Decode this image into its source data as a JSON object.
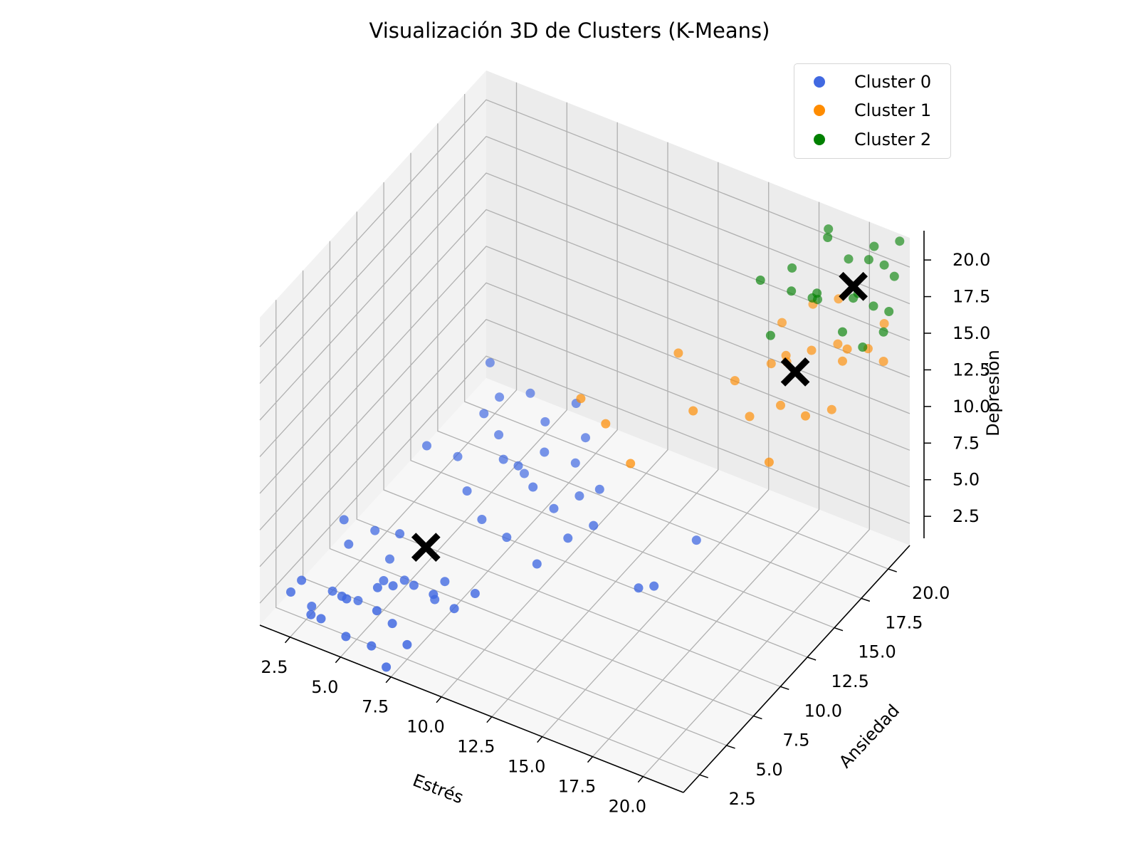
{
  "chart_data": {
    "type": "scatter",
    "title": "Visualización 3D de Clusters (K-Means)",
    "xlabel": "Estrés",
    "ylabel": "Ansiedad",
    "zlabel": "Depresión",
    "xlim": [
      1,
      22
    ],
    "ylim": [
      1,
      22
    ],
    "zlim": [
      1,
      22
    ],
    "x_ticks": [
      "2.5",
      "5.0",
      "7.5",
      "10.0",
      "12.5",
      "15.0",
      "17.5",
      "20.0"
    ],
    "y_ticks": [
      "2.5",
      "5.0",
      "7.5",
      "10.0",
      "12.5",
      "15.0",
      "17.5",
      "20.0"
    ],
    "z_ticks": [
      "2.5",
      "5.0",
      "7.5",
      "10.0",
      "12.5",
      "15.0",
      "17.5",
      "20.0"
    ],
    "grid": true,
    "legend_position": "top-right",
    "series": [
      {
        "name": "Cluster 0",
        "color": "#4169e1",
        "points": [
          [
            2.0,
            2.0,
            3.0
          ],
          [
            2.0,
            3.0,
            3.0
          ],
          [
            3.0,
            2.0,
            2.0
          ],
          [
            2.5,
            3.0,
            1.5
          ],
          [
            3.5,
            2.0,
            2.0
          ],
          [
            4.0,
            3.0,
            3.0
          ],
          [
            3.0,
            4.0,
            2.0
          ],
          [
            4.5,
            2.5,
            3.5
          ],
          [
            5.0,
            1.5,
            2.0
          ],
          [
            4.0,
            4.5,
            1.5
          ],
          [
            5.5,
            3.5,
            4.0
          ],
          [
            6.0,
            2.0,
            1.5
          ],
          [
            5.0,
            5.0,
            3.0
          ],
          [
            6.5,
            3.0,
            2.5
          ],
          [
            7.0,
            1.5,
            1.0
          ],
          [
            6.0,
            4.0,
            4.0
          ],
          [
            7.5,
            2.5,
            2.0
          ],
          [
            5.5,
            6.0,
            2.5
          ],
          [
            3.0,
            5.5,
            4.0
          ],
          [
            4.5,
            6.5,
            3.0
          ],
          [
            6.5,
            5.0,
            3.5
          ],
          [
            7.0,
            6.0,
            2.0
          ],
          [
            2.5,
            6.0,
            5.0
          ],
          [
            8.0,
            4.0,
            4.5
          ],
          [
            6.0,
            2.5,
            3.5
          ],
          [
            8.5,
            5.0,
            3.0
          ],
          [
            7.5,
            6.0,
            3.5
          ],
          [
            5.0,
            6.5,
            5.0
          ],
          [
            3.5,
            7.0,
            4.0
          ],
          [
            9.0,
            6.0,
            3.5
          ],
          [
            6.0,
            10.0,
            8.0
          ],
          [
            7.0,
            9.0,
            7.0
          ],
          [
            8.0,
            10.5,
            8.5
          ],
          [
            9.0,
            10.0,
            9.0
          ],
          [
            8.5,
            11.5,
            7.0
          ],
          [
            10.0,
            9.5,
            8.5
          ],
          [
            10.5,
            10.5,
            6.5
          ],
          [
            12.0,
            9.0,
            6.5
          ],
          [
            11.5,
            11.0,
            7.5
          ],
          [
            9.5,
            11.5,
            9.0
          ],
          [
            7.5,
            11.0,
            9.5
          ],
          [
            6.5,
            11.5,
            10.0
          ],
          [
            12.5,
            11.0,
            8.5
          ],
          [
            13.0,
            9.5,
            7.5
          ],
          [
            10.5,
            12.5,
            8.0
          ],
          [
            9.0,
            12.5,
            10.0
          ],
          [
            15.5,
            9.0,
            5.0
          ],
          [
            16.0,
            9.5,
            5.0
          ],
          [
            16.5,
            12.5,
            6.0
          ],
          [
            11.0,
            8.0,
            5.0
          ],
          [
            8.0,
            8.5,
            6.0
          ],
          [
            9.5,
            8.0,
            6.0
          ],
          [
            8.0,
            13.0,
            11.0
          ],
          [
            10.0,
            13.5,
            11.0
          ],
          [
            11.0,
            12.5,
            10.0
          ],
          [
            7.0,
            12.0,
            11.0
          ],
          [
            6.0,
            13.0,
            12.0
          ],
          [
            5.0,
            9.0,
            9.0
          ]
        ]
      },
      {
        "name": "Cluster 1",
        "color": "#ff8c00",
        "points": [
          [
            10.5,
            13.0,
            12.0
          ],
          [
            12.0,
            12.5,
            11.5
          ],
          [
            13.5,
            12.0,
            10.0
          ],
          [
            15.0,
            15.0,
            12.0
          ],
          [
            17.0,
            16.5,
            11.5
          ],
          [
            18.0,
            17.5,
            12.0
          ],
          [
            18.5,
            15.5,
            10.0
          ],
          [
            19.5,
            17.0,
            12.5
          ],
          [
            20.0,
            18.5,
            12.0
          ],
          [
            16.0,
            17.0,
            13.0
          ],
          [
            17.0,
            18.5,
            13.5
          ],
          [
            17.5,
            19.0,
            13.5
          ],
          [
            18.0,
            18.0,
            15.0
          ],
          [
            19.0,
            18.5,
            15.5
          ],
          [
            20.0,
            19.5,
            14.5
          ],
          [
            20.5,
            19.0,
            16.0
          ],
          [
            19.5,
            20.0,
            15.0
          ],
          [
            21.0,
            20.0,
            15.5
          ],
          [
            21.5,
            20.5,
            14.5
          ],
          [
            18.0,
            20.5,
            16.5
          ],
          [
            17.0,
            19.5,
            15.5
          ],
          [
            19.0,
            21.0,
            17.0
          ],
          [
            21.0,
            21.5,
            16.0
          ],
          [
            14.0,
            15.5,
            15.0
          ]
        ]
      },
      {
        "name": "Cluster 2",
        "color": "#008000",
        "points": [
          [
            17.0,
            17.5,
            20.0
          ],
          [
            18.0,
            18.5,
            19.0
          ],
          [
            17.5,
            19.5,
            19.5
          ],
          [
            18.5,
            19.5,
            18.0
          ],
          [
            19.0,
            19.0,
            19.0
          ],
          [
            20.5,
            20.0,
            19.0
          ],
          [
            20.0,
            20.5,
            18.0
          ],
          [
            21.0,
            20.5,
            18.0
          ],
          [
            21.0,
            21.5,
            20.0
          ],
          [
            21.5,
            21.0,
            17.5
          ],
          [
            21.5,
            21.5,
            19.5
          ],
          [
            21.5,
            22.0,
            21.5
          ],
          [
            20.5,
            21.5,
            21.0
          ],
          [
            19.5,
            21.0,
            20.0
          ],
          [
            19.0,
            20.0,
            22.0
          ],
          [
            18.5,
            21.0,
            21.5
          ],
          [
            20.5,
            21.0,
            20.5
          ],
          [
            20.0,
            19.5,
            16.5
          ],
          [
            21.0,
            19.5,
            16.0
          ],
          [
            21.5,
            20.5,
            16.5
          ],
          [
            17.5,
            17.5,
            16.5
          ],
          [
            18.5,
            20.0,
            17.5
          ]
        ]
      }
    ],
    "centroids": {
      "marker": "X",
      "color": "#000000",
      "points": [
        [
          6.4,
          6.3,
          5.0
        ],
        [
          18.3,
          18.3,
          13.8
        ],
        [
          20.0,
          20.5,
          18.8
        ]
      ]
    }
  }
}
